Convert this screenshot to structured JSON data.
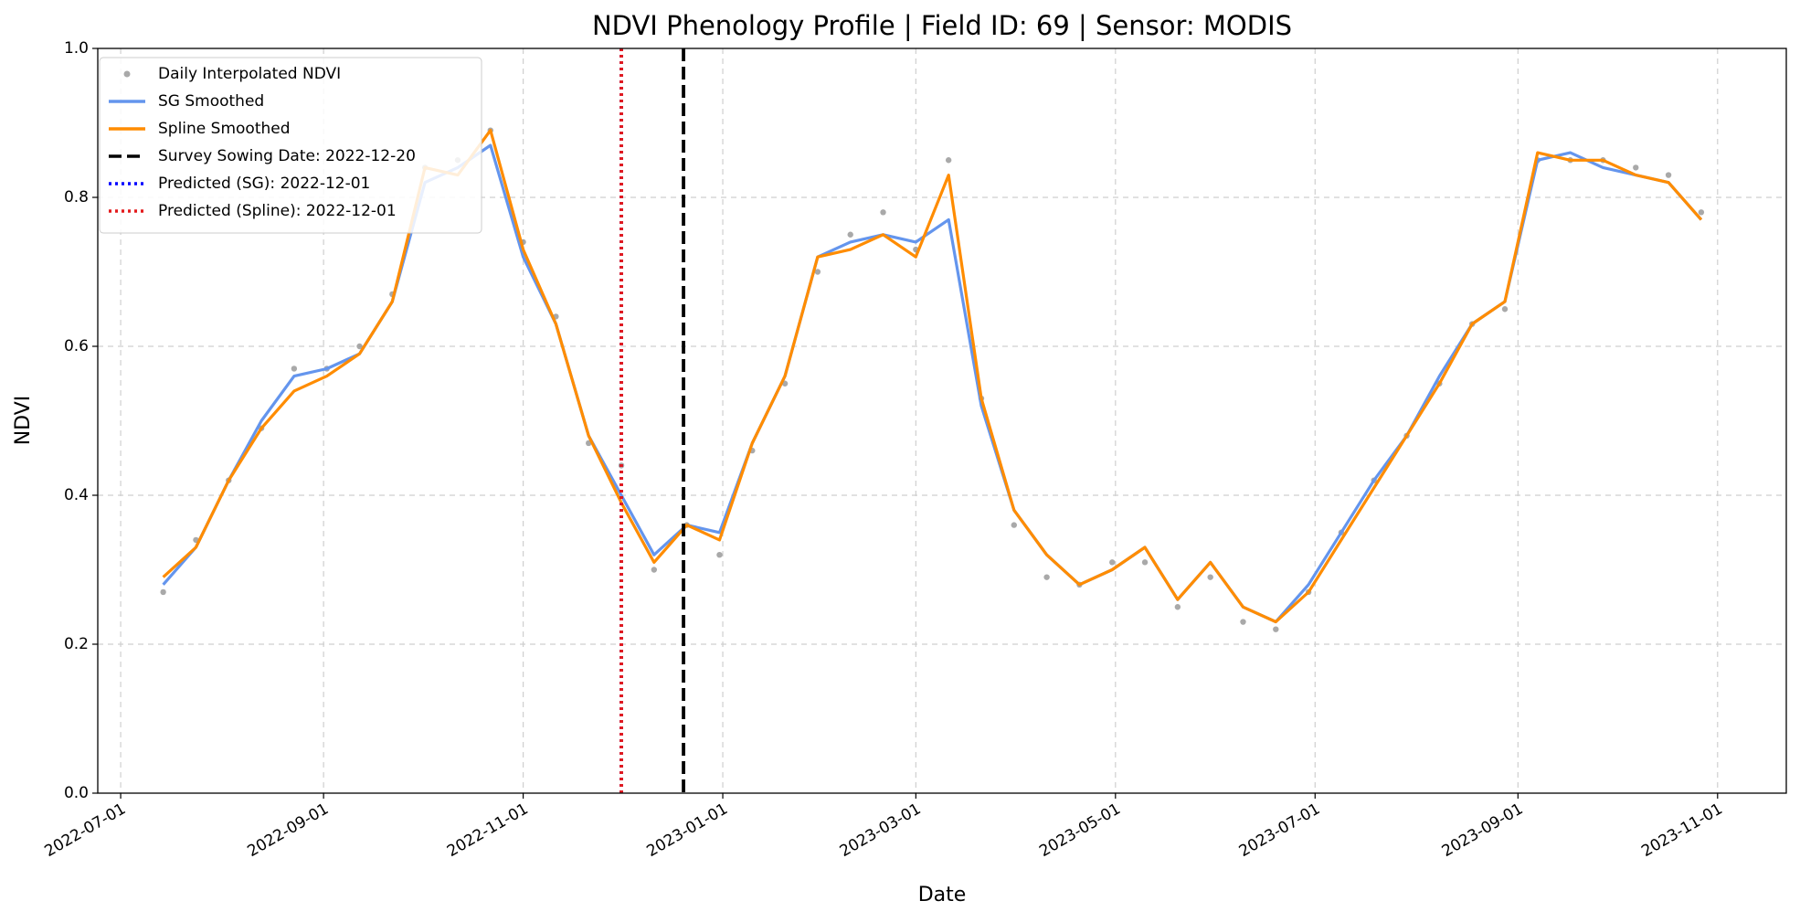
{
  "chart_data": {
    "type": "line",
    "title": "NDVI Phenology Profile | Field ID: 69 | Sensor: MODIS",
    "xlabel": "Date",
    "ylabel": "NDVI",
    "x": [
      "2022-07-14",
      "2022-07-24",
      "2022-08-03",
      "2022-08-13",
      "2022-08-23",
      "2022-09-02",
      "2022-09-12",
      "2022-09-22",
      "2022-10-02",
      "2022-10-12",
      "2022-10-22",
      "2022-11-01",
      "2022-11-11",
      "2022-11-21",
      "2022-12-01",
      "2022-12-11",
      "2022-12-21",
      "2022-12-31",
      "2023-01-10",
      "2023-01-20",
      "2023-01-30",
      "2023-02-09",
      "2023-02-19",
      "2023-03-01",
      "2023-03-11",
      "2023-03-21",
      "2023-03-31",
      "2023-04-10",
      "2023-04-20",
      "2023-04-30",
      "2023-05-10",
      "2023-05-20",
      "2023-05-30",
      "2023-06-09",
      "2023-06-19",
      "2023-06-29",
      "2023-07-09",
      "2023-07-19",
      "2023-07-29",
      "2023-08-08",
      "2023-08-18",
      "2023-08-28",
      "2023-09-07",
      "2023-09-17",
      "2023-09-27",
      "2023-10-07",
      "2023-10-17",
      "2023-10-27"
    ],
    "series": [
      {
        "name": "Daily Interpolated NDVI",
        "type": "scatter",
        "color": "#8c8c8c",
        "values": [
          0.27,
          0.34,
          0.42,
          0.49,
          0.57,
          0.57,
          0.6,
          0.67,
          0.84,
          0.85,
          0.89,
          0.74,
          0.64,
          0.47,
          0.44,
          0.3,
          0.36,
          0.32,
          0.46,
          0.55,
          0.7,
          0.75,
          0.78,
          0.73,
          0.85,
          0.53,
          0.36,
          0.29,
          0.28,
          0.31,
          0.31,
          0.25,
          0.29,
          0.23,
          0.22,
          0.27,
          0.35,
          0.42,
          0.48,
          0.55,
          0.63,
          0.65,
          0.85,
          0.85,
          0.85,
          0.84,
          0.83,
          0.78
        ]
      },
      {
        "name": "SG Smoothed",
        "type": "line",
        "color": "#6495ed",
        "values": [
          0.28,
          0.33,
          0.42,
          0.5,
          0.56,
          0.57,
          0.59,
          0.66,
          0.82,
          0.84,
          0.87,
          0.72,
          0.63,
          0.48,
          0.4,
          0.32,
          0.36,
          0.35,
          0.47,
          0.56,
          0.72,
          0.74,
          0.75,
          0.74,
          0.77,
          0.52,
          0.38,
          0.32,
          0.28,
          0.3,
          0.33,
          0.26,
          0.31,
          0.25,
          0.23,
          0.28,
          0.35,
          0.42,
          0.48,
          0.56,
          0.63,
          0.66,
          0.85,
          0.86,
          0.84,
          0.83,
          0.82,
          0.77
        ]
      },
      {
        "name": "Spline Smoothed",
        "type": "line",
        "color": "#ff8c00",
        "values": [
          0.29,
          0.33,
          0.42,
          0.49,
          0.54,
          0.56,
          0.59,
          0.66,
          0.84,
          0.83,
          0.89,
          0.73,
          0.63,
          0.48,
          0.39,
          0.31,
          0.36,
          0.34,
          0.47,
          0.56,
          0.72,
          0.73,
          0.75,
          0.72,
          0.83,
          0.53,
          0.38,
          0.32,
          0.28,
          0.3,
          0.33,
          0.26,
          0.31,
          0.25,
          0.23,
          0.27,
          0.34,
          0.41,
          0.48,
          0.55,
          0.63,
          0.66,
          0.86,
          0.85,
          0.85,
          0.83,
          0.82,
          0.77
        ]
      }
    ],
    "vlines": [
      {
        "name": "Survey Sowing Date: 2022-12-20",
        "x": "2022-12-20",
        "color": "#000000",
        "linestyle": "dashed"
      },
      {
        "name": "Predicted (SG): 2022-12-01",
        "x": "2022-12-01",
        "color": "#0000ff",
        "linestyle": "dotted"
      },
      {
        "name": "Predicted (Spline): 2022-12-01",
        "x": "2022-12-01",
        "color": "#e41a1c",
        "linestyle": "dotted"
      }
    ],
    "xlim": [
      "2022-06-24",
      "2023-11-22"
    ],
    "xticks": [
      "2022-07-01",
      "2022-09-01",
      "2022-11-01",
      "2023-01-01",
      "2023-03-01",
      "2023-05-01",
      "2023-07-01",
      "2023-09-01",
      "2023-11-01"
    ],
    "ylim": [
      0,
      1
    ],
    "yticks": [
      {
        "value": 0,
        "label": "0.0"
      },
      0.2,
      0.4,
      0.6,
      0.8,
      {
        "value": 1,
        "label": "1.0"
      }
    ],
    "grid": true,
    "legend": "upper left"
  }
}
